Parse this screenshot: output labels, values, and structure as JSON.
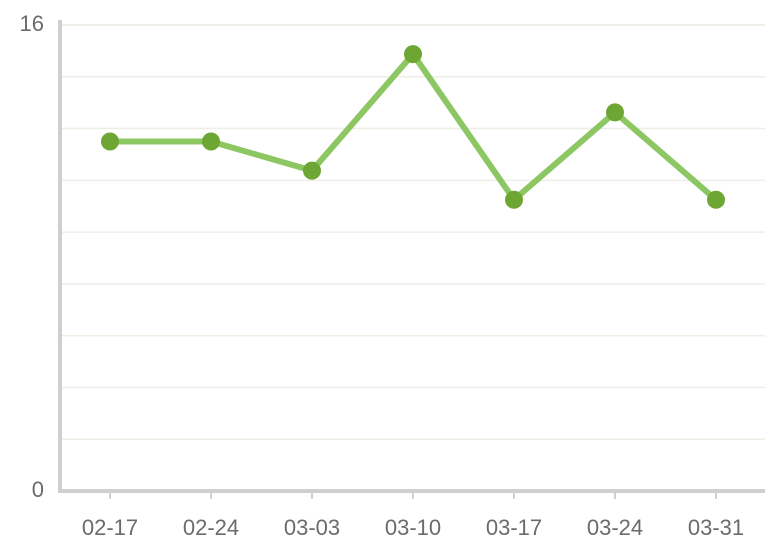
{
  "chart_data": {
    "type": "line",
    "categories": [
      "02-17",
      "02-24",
      "03-03",
      "03-10",
      "03-17",
      "03-24",
      "03-31"
    ],
    "values": [
      12,
      12,
      11,
      15,
      10,
      13,
      10
    ],
    "color": "#8cc763",
    "marker_color": "#6ea634",
    "ylim": [
      0,
      16
    ],
    "yticks": [
      0,
      16
    ],
    "grid": true
  }
}
